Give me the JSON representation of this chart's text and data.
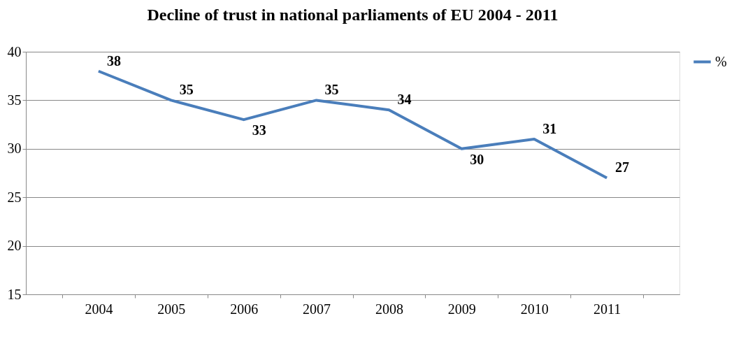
{
  "chart_data": {
    "type": "line",
    "title": "Decline of trust in national parliaments of EU 2004 - 2011",
    "categories": [
      "2004",
      "2005",
      "2006",
      "2007",
      "2008",
      "2009",
      "2010",
      "2011"
    ],
    "series": [
      {
        "name": "%",
        "color": "#4a7ebb",
        "values": [
          38,
          35,
          33,
          35,
          34,
          30,
          31,
          27
        ]
      }
    ],
    "ylim": [
      15,
      40
    ],
    "yticks": [
      15,
      20,
      25,
      30,
      35,
      40
    ],
    "grid": "y",
    "legend": "right",
    "data_labels": true,
    "marker": "none",
    "line_style": "solid"
  }
}
